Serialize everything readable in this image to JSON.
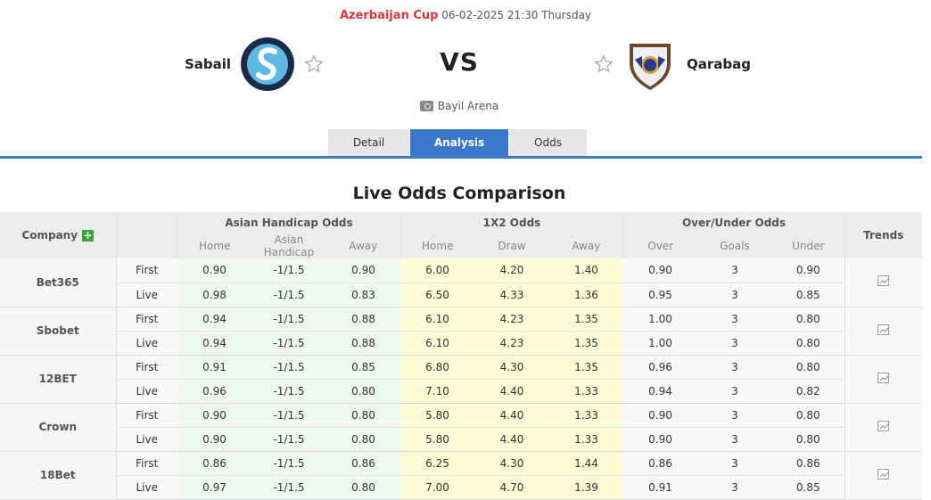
{
  "match": {
    "competition": "Azerbaijan Cup",
    "datetime": "06-02-2025 21:30 Thursday",
    "home_team": "Sabail",
    "away_team": "Qarabag",
    "vs_label": "VS",
    "venue": "Bayil Arena"
  },
  "tabs": [
    {
      "label": "Detail",
      "active": false
    },
    {
      "label": "Analysis",
      "active": true
    },
    {
      "label": "Odds",
      "active": false
    }
  ],
  "section_title": "Live Odds Comparison",
  "table": {
    "headers": {
      "company": "Company",
      "asian_handicap": "Asian Handicap Odds",
      "x12": "1X2 Odds",
      "over_under": "Over/Under Odds",
      "trends": "Trends"
    },
    "subheaders": {
      "ah": [
        "Home",
        "Asian Handicap",
        "Away"
      ],
      "x12": [
        "Home",
        "Draw",
        "Away"
      ],
      "ou": [
        "Over",
        "Goals",
        "Under"
      ]
    },
    "rows": [
      {
        "company": "Bet365",
        "first": {
          "type": "First",
          "ah": [
            "0.90",
            "-1/1.5",
            "0.90"
          ],
          "x12": [
            "6.00",
            "4.20",
            "1.40"
          ],
          "ou": [
            "0.90",
            "3",
            "0.90"
          ]
        },
        "live": {
          "type": "Live",
          "ah": [
            "0.98",
            "-1/1.5",
            "0.83"
          ],
          "x12": [
            "6.50",
            "4.33",
            "1.36"
          ],
          "ou": [
            "0.95",
            "3",
            "0.85"
          ]
        }
      },
      {
        "company": "Sbobet",
        "first": {
          "type": "First",
          "ah": [
            "0.94",
            "-1/1.5",
            "0.88"
          ],
          "x12": [
            "6.10",
            "4.23",
            "1.35"
          ],
          "ou": [
            "1.00",
            "3",
            "0.80"
          ]
        },
        "live": {
          "type": "Live",
          "ah": [
            "0.94",
            "-1/1.5",
            "0.88"
          ],
          "x12": [
            "6.10",
            "4.23",
            "1.35"
          ],
          "ou": [
            "1.00",
            "3",
            "0.80"
          ]
        }
      },
      {
        "company": "12BET",
        "first": {
          "type": "First",
          "ah": [
            "0.91",
            "-1/1.5",
            "0.85"
          ],
          "x12": [
            "6.80",
            "4.30",
            "1.35"
          ],
          "ou": [
            "0.96",
            "3",
            "0.80"
          ]
        },
        "live": {
          "type": "Live",
          "ah": [
            "0.96",
            "-1/1.5",
            "0.80"
          ],
          "x12": [
            "7.10",
            "4.40",
            "1.33"
          ],
          "ou": [
            "0.94",
            "3",
            "0.82"
          ]
        }
      },
      {
        "company": "Crown",
        "first": {
          "type": "First",
          "ah": [
            "0.90",
            "-1/1.5",
            "0.80"
          ],
          "x12": [
            "5.80",
            "4.40",
            "1.33"
          ],
          "ou": [
            "0.90",
            "3",
            "0.80"
          ]
        },
        "live": {
          "type": "Live",
          "ah": [
            "0.90",
            "-1/1.5",
            "0.80"
          ],
          "x12": [
            "5.80",
            "4.40",
            "1.33"
          ],
          "ou": [
            "0.90",
            "3",
            "0.80"
          ]
        }
      },
      {
        "company": "18Bet",
        "first": {
          "type": "First",
          "ah": [
            "0.86",
            "-1/1.5",
            "0.86"
          ],
          "x12": [
            "6.25",
            "4.30",
            "1.44"
          ],
          "ou": [
            "0.86",
            "3",
            "0.86"
          ]
        },
        "live": {
          "type": "Live",
          "ah": [
            "0.97",
            "-1/1.5",
            "0.80"
          ],
          "x12": [
            "7.00",
            "4.70",
            "1.39"
          ],
          "ou": [
            "0.91",
            "3",
            "0.85"
          ]
        }
      }
    ]
  },
  "icons": {
    "add_company": "plus-icon",
    "trend": "line-chart-icon",
    "favorite": "star-outline-icon",
    "venue": "stadium-icon"
  },
  "colors": {
    "competition": "#d9383b",
    "tab_active": "#3b78c9",
    "ah_bg": "#eef8ee",
    "x12_bg": "#fdfbd8",
    "plus_green": "#3aa33a"
  }
}
